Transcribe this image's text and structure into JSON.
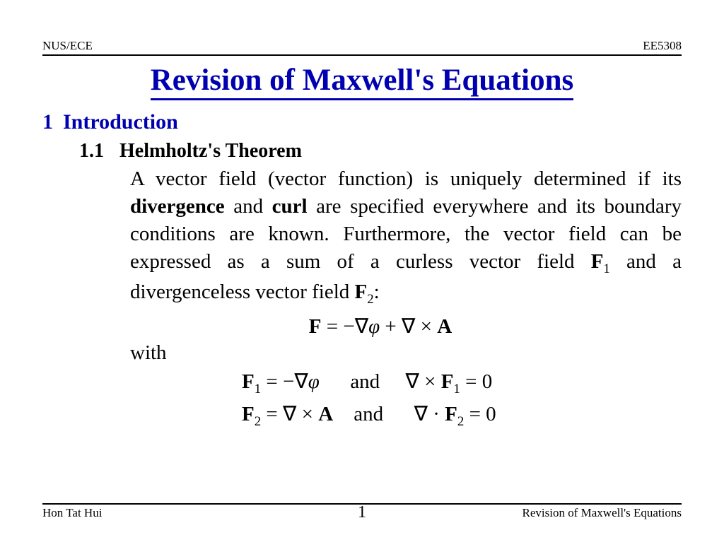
{
  "header": {
    "left": "NUS/ECE",
    "right": "EE5308"
  },
  "title": "Revision of Maxwell's Equations",
  "section": {
    "number": "1",
    "label": "Introduction"
  },
  "subsection": {
    "number": "1.1",
    "label": "Helmholtz's Theorem"
  },
  "body": {
    "p1a": "A vector field (vector function) is uniquely determined if its ",
    "div": "divergence",
    "p1b": " and ",
    "curl": "curl",
    "p1c": " are specified everywhere and its boundary conditions are known.  Furthermore, the vector field can be expressed as a sum of a curless vector field ",
    "F1": "F",
    "sub1": "1",
    "p1d": " and a divergenceless vector field ",
    "F2": "F",
    "sub2": "2",
    "p1e": ":"
  },
  "with": "with",
  "and": "and",
  "footer": {
    "left": "Hon Tat Hui",
    "page": "1",
    "right": "Revision of Maxwell's Equations"
  }
}
